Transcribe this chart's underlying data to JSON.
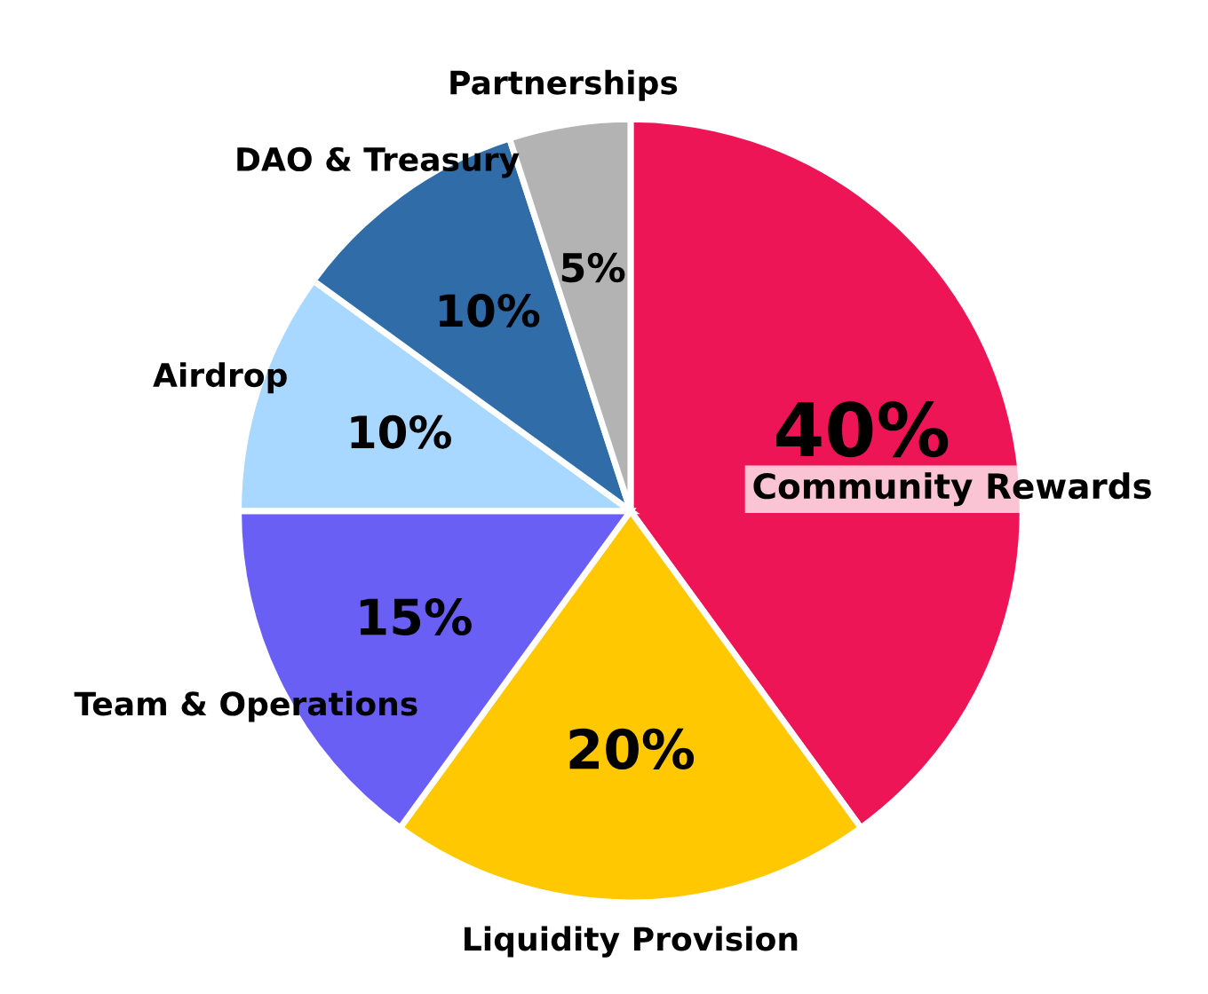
{
  "chart_data": {
    "type": "pie",
    "categories": [
      "Community Rewards",
      "Liquidity Provision",
      "Team & Operations",
      "Airdrop",
      "DAO & Treasury",
      "Partnerships"
    ],
    "values": [
      40,
      20,
      15,
      10,
      10,
      5
    ],
    "colors": [
      "#ee1556",
      "#ffc800",
      "#6a5ff5",
      "#a8d8ff",
      "#2f6ca8",
      "#b3b3b3"
    ],
    "value_labels": [
      "40%",
      "20%",
      "15%",
      "10%",
      "10%",
      "5%"
    ],
    "legend": false
  }
}
